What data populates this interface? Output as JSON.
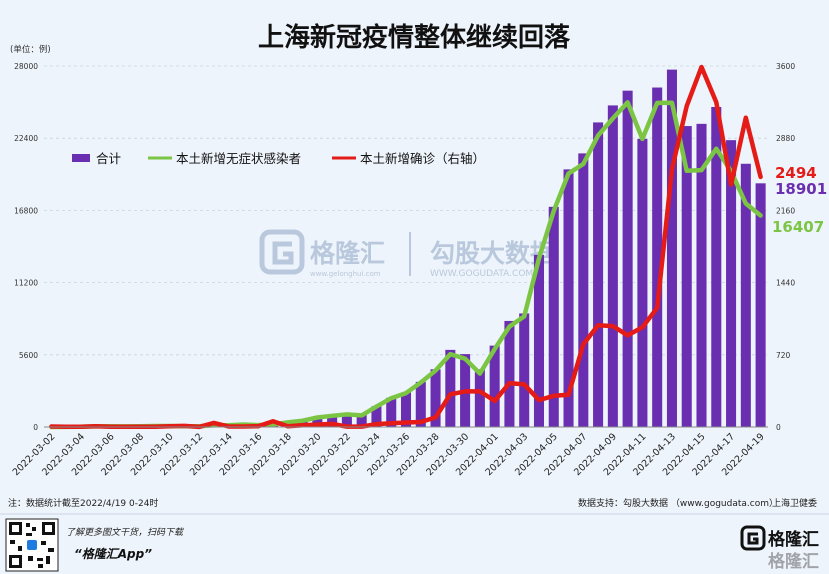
{
  "title": "上海新冠疫情整体继续回落",
  "unit_label": "(单位：例)",
  "watermark": {
    "brand_name": "格隆汇",
    "brand_url": "www.gelonghui.com",
    "data_name": "勾股大数据",
    "data_url": "WWW.GOGUDATA.COM"
  },
  "footer": {
    "note": "注：数据统计截至2022/4/19 0-24时",
    "support": "数据支持：勾股大数据 （www.gogudata.com）",
    "source": "上海卫健委"
  },
  "promo": {
    "line1": "了解更多图文干货，扫码下载",
    "line2": "“格隆汇App”",
    "brand": "格隆汇"
  },
  "colors": {
    "bar": "#6a2fb0",
    "green": "#7cc544",
    "red": "#e41b17",
    "background": "#eef4fb"
  },
  "chart_data": {
    "type": "bar",
    "left_axis": {
      "ticks": [
        "0",
        "5600",
        "11200",
        "16800",
        "22400",
        "28000"
      ],
      "range": [
        0,
        28000
      ]
    },
    "right_axis": {
      "ticks": [
        "0",
        "720",
        "1440",
        "2160",
        "2880",
        "3600"
      ],
      "range": [
        0,
        3600
      ]
    },
    "x_tick_labels": [
      "2022-03-02",
      "2022-03-04",
      "2022-03-06",
      "2022-03-08",
      "2022-03-10",
      "2022-03-12",
      "2022-03-14",
      "2022-03-16",
      "2022-03-18",
      "2022-03-20",
      "2022-03-22",
      "2022-03-24",
      "2022-03-26",
      "2022-03-28",
      "2022-03-30",
      "2022-04-01",
      "2022-04-03",
      "2022-04-05",
      "2022-04-07",
      "2022-04-09",
      "2022-04-11",
      "2022-04-13",
      "2022-04-15",
      "2022-04-17",
      "2022-04-19"
    ],
    "dates": [
      "2022-03-02",
      "2022-03-03",
      "2022-03-04",
      "2022-03-05",
      "2022-03-06",
      "2022-03-07",
      "2022-03-08",
      "2022-03-09",
      "2022-03-10",
      "2022-03-11",
      "2022-03-12",
      "2022-03-13",
      "2022-03-14",
      "2022-03-15",
      "2022-03-16",
      "2022-03-17",
      "2022-03-18",
      "2022-03-19",
      "2022-03-20",
      "2022-03-21",
      "2022-03-22",
      "2022-03-23",
      "2022-03-24",
      "2022-03-25",
      "2022-03-26",
      "2022-03-27",
      "2022-03-28",
      "2022-03-29",
      "2022-03-30",
      "2022-03-31",
      "2022-04-01",
      "2022-04-02",
      "2022-04-03",
      "2022-04-04",
      "2022-04-05",
      "2022-04-06",
      "2022-04-07",
      "2022-04-08",
      "2022-04-09",
      "2022-04-10",
      "2022-04-11",
      "2022-04-12",
      "2022-04-13",
      "2022-04-14",
      "2022-04-15",
      "2022-04-16",
      "2022-04-17",
      "2022-04-18",
      "2022-04-19"
    ],
    "series": [
      {
        "name": "合计",
        "type": "bar",
        "axis": "left",
        "values": [
          8,
          14,
          16,
          62,
          64,
          50,
          62,
          76,
          83,
          75,
          64,
          169,
          202,
          202,
          158,
          260,
          374,
          509,
          758,
          896,
          981,
          981,
          1609,
          2269,
          2676,
          3500,
          4477,
          5982,
          5653,
          4477,
          6311,
          8226,
          8807,
          13354,
          17077,
          19982,
          21222,
          23624,
          24943,
          26087,
          22348,
          26330,
          27719,
          23342,
          23513,
          24820,
          22248,
          20417,
          18901
        ]
      },
      {
        "name": "本土新增无症状感染者",
        "type": "line",
        "axis": "left",
        "values": [
          3,
          11,
          14,
          55,
          62,
          48,
          59,
          74,
          76,
          64,
          64,
          128,
          130,
          197,
          150,
          203,
          366,
          492,
          734,
          865,
          977,
          896,
          1580,
          2231,
          2631,
          3450,
          4381,
          5656,
          5298,
          4144,
          6051,
          7788,
          8581,
          13086,
          16766,
          19660,
          20398,
          22609,
          23937,
          25173,
          22348,
          25141,
          25146,
          19872,
          19923,
          21582,
          19831,
          17332,
          16407
        ]
      },
      {
        "name": "本土新增确诊（右轴）",
        "type": "line",
        "axis": "right",
        "values": [
          5,
          3,
          2,
          7,
          2,
          2,
          3,
          2,
          7,
          11,
          1,
          41,
          5,
          5,
          8,
          57,
          8,
          17,
          24,
          31,
          4,
          4,
          29,
          38,
          45,
          50,
          96,
          326,
          355,
          355,
          260,
          438,
          425,
          268,
          311,
          322,
          824,
          1015,
          1006,
          914,
          994,
          1189,
          2573,
          3200,
          3590,
          3238,
          2417,
          3084,
          2494
        ]
      }
    ],
    "end_labels": [
      "2494",
      "18901",
      "16407"
    ],
    "legend_position": "top-left"
  }
}
